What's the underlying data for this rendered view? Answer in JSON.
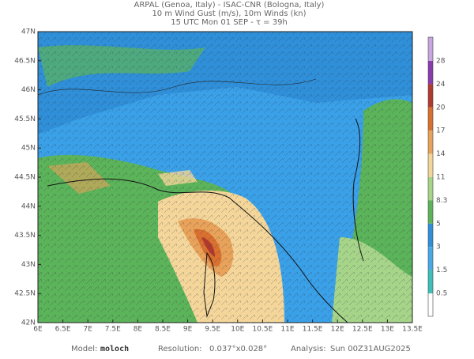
{
  "header": {
    "line1": "ARPAL (Genoa, Italy)  -  ISAC-CNR (Bologna, Italy)",
    "line2": "10 m Wind Gust (m/s), 10m Winds (kn)",
    "line3": "15 UTC Mon 01 SEP  -  τ = 39h"
  },
  "map": {
    "lat_labels": [
      "47N",
      "46.5N",
      "46N",
      "45.5N",
      "45N",
      "44.5N",
      "44N",
      "43.5N",
      "43N",
      "42.5N",
      "42N"
    ],
    "lon_labels": [
      "6E",
      "6.5E",
      "7E",
      "7.5E",
      "8E",
      "8.5E",
      "9E",
      "9.5E",
      "10E",
      "10.5E",
      "11E",
      "11.5E",
      "12E",
      "12.5E",
      "13E",
      "13.5E"
    ]
  },
  "colorbar": {
    "labels": [
      "28",
      "24",
      "20",
      "17",
      "14",
      "11",
      "8.3",
      "5",
      "3",
      "1.5",
      "0.5"
    ],
    "colors": [
      "#c9a6e0",
      "#8a3bb0",
      "#b03a2e",
      "#d9702f",
      "#e8a25a",
      "#f4d69a",
      "#a6d58a",
      "#5bb35a",
      "#2f8fd8",
      "#4aa8e8",
      "#3cc0b8",
      "#ffffff"
    ]
  },
  "footer": {
    "model_label": "Model:",
    "model": "moloch",
    "resolution_label": "Resolution:",
    "resolution": "0.037°x0.028°",
    "analysis_label": "Analysis:",
    "analysis": "Sun 00Z31AUG2025"
  }
}
